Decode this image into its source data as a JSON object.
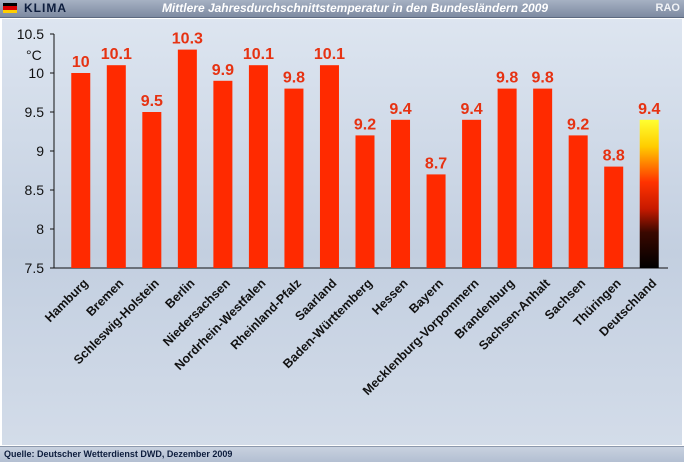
{
  "header": {
    "brand": "KLIMA",
    "title": "Mittlere Jahresdurchschnittstemperatur in den Bundesländern 2009",
    "publisher": "RAO"
  },
  "footer": {
    "source": "Quelle: Deutscher Wetterdienst DWD, Dezember 2009"
  },
  "colors": {
    "bar": "#ff2a00",
    "value_label": "#e63212",
    "flag_black": "#000000",
    "flag_red": "#dd0000",
    "flag_gold": "#ffce00"
  },
  "chart_data": {
    "type": "bar",
    "title": "Mittlere Jahresdurchschnittstemperatur in den Bundesländern 2009",
    "ylabel": "°C",
    "xlabel": "",
    "ylim": [
      7.5,
      10.5
    ],
    "yticks": [
      "7.5",
      "8",
      "8.5",
      "9",
      "9.5",
      "10",
      "10.5"
    ],
    "grid": false,
    "categories": [
      "Hamburg",
      "Bremen",
      "Schleswig-Holstein",
      "Berlin",
      "Niedersachsen",
      "Nordrhein-Westfalen",
      "Rheinland-Pfalz",
      "Saarland",
      "Baden-Württemberg",
      "Hessen",
      "Bayern",
      "Mecklenburg-Vorpommern",
      "Brandenburg",
      "Sachsen-Anhalt",
      "Sachsen",
      "Thüringen",
      "Deutschland"
    ],
    "values": [
      10,
      10.1,
      9.5,
      10.3,
      9.9,
      10.1,
      9.8,
      10.1,
      9.2,
      9.4,
      8.7,
      9.4,
      9.8,
      9.8,
      9.2,
      8.8,
      9.4
    ],
    "value_labels": [
      "10",
      "10.1",
      "9.5",
      "10.3",
      "9.9",
      "10.1",
      "9.8",
      "10.1",
      "9.2",
      "9.4",
      "8.7",
      "9.4",
      "9.8",
      "9.8",
      "9.2",
      "8.8",
      "9.4"
    ],
    "highlight_category": "Deutschland",
    "highlight_style": "gradient black-red-yellow"
  }
}
